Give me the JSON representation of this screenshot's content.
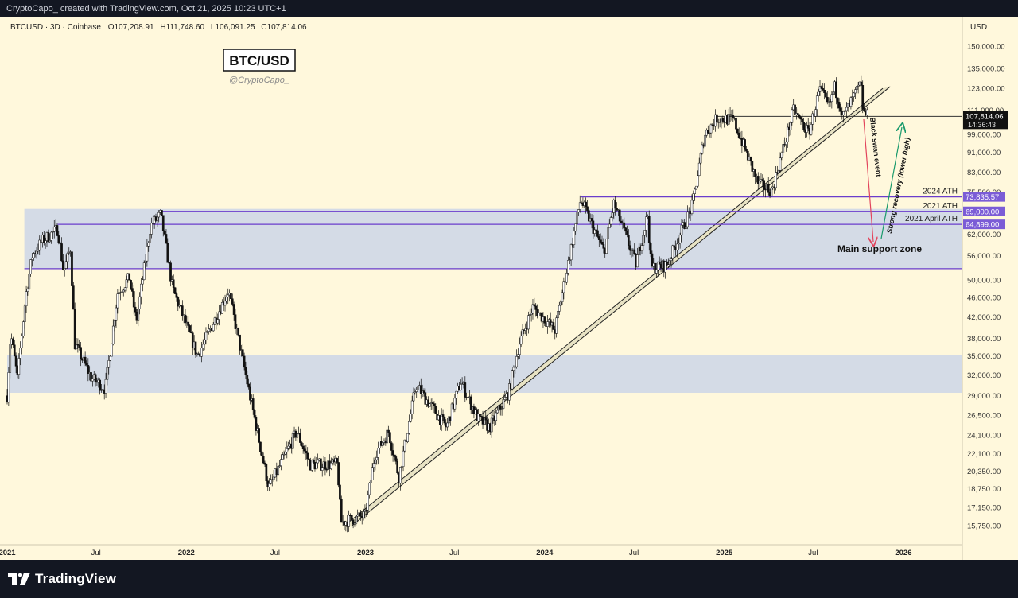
{
  "header": {
    "attribution": "CryptoCapo_ created with TradingView.com, Oct 21, 2025 10:23 UTC+1"
  },
  "footer": {
    "brand": "TradingView"
  },
  "chart_data": {
    "type": "candlestick",
    "symbol_line": "BTCUSD · 3D · Coinbase",
    "ohlc": {
      "open": "O107,208.91",
      "high": "H111,748.60",
      "low": "L106,091.25",
      "close": "C107,814.06"
    },
    "title": "BTC/USD",
    "author": "@CryptoCapo_",
    "y_axis": {
      "unit": "USD",
      "scale": "log",
      "ticks": [
        150000,
        135000,
        123000,
        111000,
        99000,
        91000,
        83000,
        75500,
        62000,
        56000,
        50000,
        46000,
        42000,
        38000,
        35000,
        32000,
        29000,
        26500,
        24100,
        22100,
        20350,
        18750,
        17150,
        15750
      ],
      "tick_labels": [
        "150,000.00",
        "135,000.00",
        "123,000.00",
        "111,000.00",
        "99,000.00",
        "91,000.00",
        "83,000.00",
        "75,500.00",
        "62,000.00",
        "56,000.00",
        "50,000.00",
        "46,000.00",
        "42,000.00",
        "38,000.00",
        "35,000.00",
        "32,000.00",
        "29,000.00",
        "26,500.00",
        "24,100.00",
        "22,100.00",
        "20,350.00",
        "18,750.00",
        "17,150.00",
        "15,750.00"
      ]
    },
    "x_axis": {
      "range": [
        "2021-01-01",
        "2026-05-01"
      ],
      "ticks": [
        {
          "date": "2021-01-01",
          "label": "2021",
          "bold": true
        },
        {
          "date": "2021-07-01",
          "label": "Jul",
          "bold": false
        },
        {
          "date": "2022-01-01",
          "label": "2022",
          "bold": true
        },
        {
          "date": "2022-07-01",
          "label": "Jul",
          "bold": false
        },
        {
          "date": "2023-01-01",
          "label": "2023",
          "bold": true
        },
        {
          "date": "2023-07-01",
          "label": "Jul",
          "bold": false
        },
        {
          "date": "2024-01-01",
          "label": "2024",
          "bold": true
        },
        {
          "date": "2024-07-01",
          "label": "Jul",
          "bold": false
        },
        {
          "date": "2025-01-01",
          "label": "2025",
          "bold": true
        },
        {
          "date": "2025-07-01",
          "label": "Jul",
          "bold": false
        },
        {
          "date": "2026-01-01",
          "label": "2026",
          "bold": true
        }
      ]
    },
    "price_anchors": [
      [
        "2021-01-01",
        29000
      ],
      [
        "2021-01-08",
        39000
      ],
      [
        "2021-01-22",
        31500
      ],
      [
        "2021-02-08",
        46500
      ],
      [
        "2021-02-21",
        56000
      ],
      [
        "2021-03-13",
        60000
      ],
      [
        "2021-04-14",
        63500
      ],
      [
        "2021-04-26",
        52000
      ],
      [
        "2021-05-10",
        58000
      ],
      [
        "2021-05-19",
        37000
      ],
      [
        "2021-06-22",
        31500
      ],
      [
        "2021-07-20",
        30000
      ],
      [
        "2021-08-14",
        47000
      ],
      [
        "2021-09-07",
        50500
      ],
      [
        "2021-09-21",
        41000
      ],
      [
        "2021-10-20",
        64500
      ],
      [
        "2021-11-10",
        68000
      ],
      [
        "2021-12-04",
        48000
      ],
      [
        "2022-01-24",
        35000
      ],
      [
        "2022-03-28",
        47500
      ],
      [
        "2022-05-12",
        28500
      ],
      [
        "2022-06-18",
        18800
      ],
      [
        "2022-08-14",
        24500
      ],
      [
        "2022-09-10",
        21000
      ],
      [
        "2022-11-05",
        21000
      ],
      [
        "2022-11-12",
        16000
      ],
      [
        "2022-12-31",
        16500
      ],
      [
        "2023-01-20",
        22000
      ],
      [
        "2023-02-17",
        24500
      ],
      [
        "2023-03-10",
        19800
      ],
      [
        "2023-04-14",
        30500
      ],
      [
        "2023-06-15",
        25000
      ],
      [
        "2023-07-14",
        31000
      ],
      [
        "2023-08-18",
        26000
      ],
      [
        "2023-09-11",
        25000
      ],
      [
        "2023-10-20",
        29500
      ],
      [
        "2023-11-10",
        37000
      ],
      [
        "2023-12-08",
        44000
      ],
      [
        "2024-01-22",
        39500
      ],
      [
        "2024-02-28",
        61000
      ],
      [
        "2024-03-14",
        73000
      ],
      [
        "2024-05-01",
        57000
      ],
      [
        "2024-05-21",
        71500
      ],
      [
        "2024-07-05",
        54000
      ],
      [
        "2024-07-29",
        68000
      ],
      [
        "2024-08-05",
        53000
      ],
      [
        "2024-09-06",
        53500
      ],
      [
        "2024-10-28",
        71000
      ],
      [
        "2024-11-22",
        99000
      ],
      [
        "2024-12-17",
        107000
      ],
      [
        "2025-01-20",
        106000
      ],
      [
        "2025-03-11",
        78500
      ],
      [
        "2025-04-08",
        76000
      ],
      [
        "2025-05-22",
        111000
      ],
      [
        "2025-06-22",
        99500
      ],
      [
        "2025-07-14",
        122000
      ],
      [
        "2025-08-02",
        113000
      ],
      [
        "2025-08-14",
        123500
      ],
      [
        "2025-09-01",
        108000
      ],
      [
        "2025-10-06",
        125500
      ],
      [
        "2025-10-11",
        110000
      ],
      [
        "2025-10-21",
        107814
      ]
    ],
    "zones": [
      {
        "name": "upper-zone",
        "from": "2021-02-05",
        "to": "2026-05-01",
        "low": 52700,
        "high": 69800,
        "color": "#d4dbe6"
      },
      {
        "name": "lower-zone",
        "from": "2021-01-01",
        "to": "2026-05-01",
        "low": 29400,
        "high": 35100,
        "color": "#d4dbe6"
      }
    ],
    "levels": [
      {
        "name": "2024 ATH",
        "label": "2024 ATH",
        "value": 73835.57,
        "value_label": "73,835.57",
        "from": "2024-03-14"
      },
      {
        "name": "2021 ATH",
        "label": "2021 ATH",
        "value": 69000.0,
        "value_label": "69,000.00",
        "from": "2021-11-10"
      },
      {
        "name": "2021 April ATH",
        "label": "2021 April ATH",
        "value": 64899.0,
        "value_label": "64,899.00",
        "from": "2021-04-14"
      },
      {
        "name": "zone-bottom",
        "label": "",
        "value": 52700,
        "value_label": "",
        "from": "2021-02-05"
      }
    ],
    "trend_channel": [
      {
        "from": [
          "2022-11-21",
          15800
        ],
        "to": [
          "2025-11-20",
          123000
        ]
      },
      {
        "from": [
          "2022-12-03",
          15700
        ],
        "to": [
          "2025-12-05",
          124000
        ]
      }
    ],
    "resistance_line": {
      "from": "2024-12-17",
      "to": "2026-05-01",
      "value": 107814
    },
    "last_price": {
      "value": 107814.06,
      "label": "107,814.06",
      "countdown": "14:36:43"
    },
    "annotations": {
      "main_support": "Main support zone",
      "black_swan": "Black swan event",
      "strong_recovery": "Strong recovery (lower high)"
    },
    "colors": {
      "background": "#fff8dc",
      "candle": "#111111",
      "level_line": "#6a3dcc",
      "level_tag": "#7b5cd6",
      "zone": "#d4dbe6",
      "red_arrow": "#e2445c",
      "green_arrow": "#1a9a6c",
      "channel_fill": "#e8e3c4"
    }
  }
}
